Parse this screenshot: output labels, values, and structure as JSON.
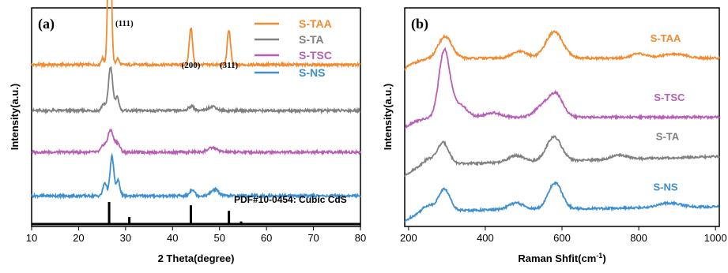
{
  "colors": {
    "S-TAA": "#f28a2f",
    "S-TA": "#808080",
    "S-TSC": "#b85fb5",
    "S-NS": "#3d8fd1"
  },
  "chart_data": [
    {
      "type": "line",
      "panel_label": "(a)",
      "xlabel": "2 Theta(degree)",
      "ylabel": "Intensity(a.u.)",
      "xlim": [
        10,
        80
      ],
      "xticks": [
        "10",
        "20",
        "30",
        "40",
        "50",
        "60",
        "70",
        "80"
      ],
      "legend": {
        "position": "top-right",
        "entries": [
          "S-TAA",
          "S-TA",
          "S-TSC",
          "S-NS"
        ]
      },
      "peak_labels": [
        {
          "text": "(111)",
          "x": 27.5
        },
        {
          "text": "(200)",
          "x": 43.9
        },
        {
          "text": "(311)",
          "x": 52.0
        }
      ],
      "series": [
        {
          "name": "S-TAA",
          "baseline": 0.74,
          "peaks": [
            {
              "x": 25.1,
              "h": 0.03,
              "w": 0.3
            },
            {
              "x": 26.6,
              "h": 0.75,
              "w": 0.35
            },
            {
              "x": 28.3,
              "h": 0.03,
              "w": 0.3
            },
            {
              "x": 43.9,
              "h": 0.17,
              "w": 0.35
            },
            {
              "x": 52.0,
              "h": 0.16,
              "w": 0.35
            }
          ]
        },
        {
          "name": "S-TA",
          "baseline": 0.53,
          "peaks": [
            {
              "x": 25.3,
              "h": 0.03,
              "w": 0.4
            },
            {
              "x": 26.8,
              "h": 0.2,
              "w": 0.45
            },
            {
              "x": 28.2,
              "h": 0.06,
              "w": 0.4
            },
            {
              "x": 44.0,
              "h": 0.02,
              "w": 0.6
            },
            {
              "x": 48.5,
              "h": 0.02,
              "w": 0.8
            }
          ]
        },
        {
          "name": "S-TSC",
          "baseline": 0.34,
          "peaks": [
            {
              "x": 25.3,
              "h": 0.03,
              "w": 0.5
            },
            {
              "x": 26.8,
              "h": 0.1,
              "w": 0.6
            },
            {
              "x": 28.3,
              "h": 0.04,
              "w": 0.5
            },
            {
              "x": 48.5,
              "h": 0.02,
              "w": 1.0
            }
          ]
        },
        {
          "name": "S-NS",
          "baseline": 0.14,
          "peaks": [
            {
              "x": 25.6,
              "h": 0.06,
              "w": 0.4
            },
            {
              "x": 27.1,
              "h": 0.18,
              "w": 0.4
            },
            {
              "x": 28.4,
              "h": 0.07,
              "w": 0.4
            },
            {
              "x": 44.2,
              "h": 0.03,
              "w": 0.5
            },
            {
              "x": 49.0,
              "h": 0.03,
              "w": 0.8
            }
          ]
        }
      ],
      "reference": {
        "label": "PDF#10-0454: Cubic CdS",
        "lines": [
          {
            "x": 26.5,
            "h": 1.0
          },
          {
            "x": 30.8,
            "h": 0.32
          },
          {
            "x": 43.9,
            "h": 0.85
          },
          {
            "x": 52.0,
            "h": 0.6
          },
          {
            "x": 54.6,
            "h": 0.12
          }
        ]
      }
    },
    {
      "type": "line",
      "panel_label": "(b)",
      "xlabel": "Raman Shfit(cm",
      "xlabel_sup": "-1",
      "xlabel_tail": ")",
      "ylabel": "Intensity(a.u.)",
      "xlim": [
        190,
        1010
      ],
      "xticks": [
        "200",
        "400",
        "600",
        "800",
        "1000"
      ],
      "series": [
        {
          "name": "S-TAA",
          "label_x": 870,
          "baseline": 0.77,
          "tilt": 0.0,
          "peaks": [
            {
              "x": 295,
              "h": 0.1,
              "w": 18
            },
            {
              "x": 490,
              "h": 0.03,
              "w": 20
            },
            {
              "x": 580,
              "h": 0.12,
              "w": 22
            },
            {
              "x": 800,
              "h": 0.02,
              "w": 20
            },
            {
              "x": 890,
              "h": 0.02,
              "w": 30
            }
          ]
        },
        {
          "name": "S-TSC",
          "label_x": 880,
          "baseline": 0.5,
          "tilt": 0.0,
          "peaks": [
            {
              "x": 293,
              "h": 0.3,
              "w": 14
            },
            {
              "x": 330,
              "h": 0.06,
              "w": 20
            },
            {
              "x": 420,
              "h": 0.02,
              "w": 20
            },
            {
              "x": 550,
              "h": 0.05,
              "w": 20
            },
            {
              "x": 585,
              "h": 0.1,
              "w": 18
            }
          ]
        },
        {
          "name": "S-TA",
          "label_x": 875,
          "baseline": 0.28,
          "tilt": 0.04,
          "peaks": [
            {
              "x": 250,
              "h": 0.03,
              "w": 15
            },
            {
              "x": 290,
              "h": 0.1,
              "w": 15
            },
            {
              "x": 480,
              "h": 0.03,
              "w": 20
            },
            {
              "x": 570,
              "h": 0.05,
              "w": 18
            },
            {
              "x": 585,
              "h": 0.07,
              "w": 18
            },
            {
              "x": 750,
              "h": 0.02,
              "w": 20
            }
          ]
        },
        {
          "name": "S-NS",
          "label_x": 870,
          "baseline": 0.07,
          "tilt": 0.02,
          "peaks": [
            {
              "x": 250,
              "h": 0.03,
              "w": 15
            },
            {
              "x": 293,
              "h": 0.1,
              "w": 15
            },
            {
              "x": 480,
              "h": 0.03,
              "w": 20
            },
            {
              "x": 582,
              "h": 0.12,
              "w": 18
            },
            {
              "x": 880,
              "h": 0.02,
              "w": 30
            }
          ]
        }
      ]
    }
  ]
}
